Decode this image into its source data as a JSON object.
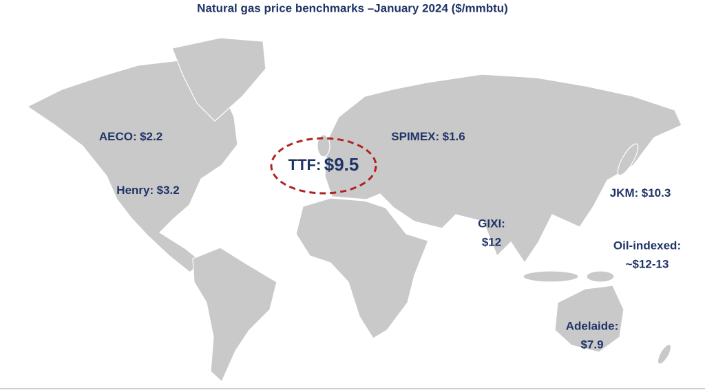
{
  "title": "Natural gas price benchmarks –January 2024 ($/mmbtu)",
  "labels": [
    {
      "name": "AECO:",
      "price": "$2.2"
    },
    {
      "name": "Henry:",
      "price": "$3.2"
    },
    {
      "name": "TTF:",
      "price": "$9.5"
    },
    {
      "name": "SPIMEX:",
      "price": "$1.6"
    },
    {
      "name": "JKM:",
      "price": "$10.3"
    },
    {
      "name": "GIXI:",
      "price": "$12"
    },
    {
      "name": "Oil-indexed:",
      "price": "~$12-13"
    },
    {
      "name": "Adelaide:",
      "price": "$7.9"
    }
  ]
}
